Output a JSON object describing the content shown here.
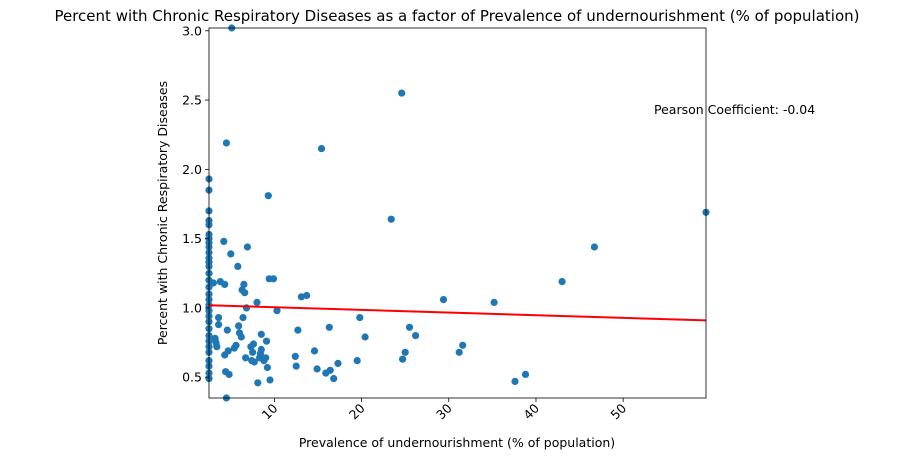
{
  "chart_data": {
    "type": "scatter",
    "title": "Percent with Chronic Respiratory Diseases as a factor of Prevalence of undernourishment (% of population)",
    "xlabel": "Prevalence of undernourishment (% of population)",
    "ylabel": "Percent with Chronic Respiratory Diseases",
    "xlim": [
      2.5,
      59.5
    ],
    "ylim": [
      0.35,
      3.02
    ],
    "xticks": [
      10,
      20,
      30,
      40,
      50
    ],
    "yticks": [
      0.5,
      1.0,
      1.5,
      2.0,
      2.5,
      3.0
    ],
    "xtick_labels": [
      "10",
      "20",
      "30",
      "40",
      "50"
    ],
    "ytick_labels": [
      "0.5",
      "1.0",
      "1.5",
      "2.0",
      "2.5",
      "3.0"
    ],
    "grid": false,
    "annotation": "Pearson Coefficient: -0.04",
    "marker_color": "#1f77b4",
    "trend_color": "#ff0000",
    "trend_line": {
      "x": [
        2.5,
        59.5
      ],
      "y": [
        1.02,
        0.91
      ]
    },
    "points": [
      {
        "x": 2.5,
        "y": 1.93
      },
      {
        "x": 2.5,
        "y": 1.85
      },
      {
        "x": 2.5,
        "y": 1.7
      },
      {
        "x": 2.5,
        "y": 1.63
      },
      {
        "x": 2.5,
        "y": 1.6
      },
      {
        "x": 2.5,
        "y": 1.53
      },
      {
        "x": 2.5,
        "y": 1.5
      },
      {
        "x": 2.5,
        "y": 1.47
      },
      {
        "x": 2.5,
        "y": 1.44
      },
      {
        "x": 2.5,
        "y": 1.4
      },
      {
        "x": 2.5,
        "y": 1.36
      },
      {
        "x": 2.5,
        "y": 1.33
      },
      {
        "x": 2.5,
        "y": 1.3
      },
      {
        "x": 2.5,
        "y": 1.25
      },
      {
        "x": 2.5,
        "y": 1.2
      },
      {
        "x": 2.5,
        "y": 1.15
      },
      {
        "x": 2.5,
        "y": 1.1
      },
      {
        "x": 2.5,
        "y": 1.06
      },
      {
        "x": 2.5,
        "y": 1.02
      },
      {
        "x": 2.5,
        "y": 0.98
      },
      {
        "x": 2.5,
        "y": 0.94
      },
      {
        "x": 2.5,
        "y": 0.9
      },
      {
        "x": 2.5,
        "y": 0.85
      },
      {
        "x": 2.5,
        "y": 0.8
      },
      {
        "x": 2.5,
        "y": 0.76
      },
      {
        "x": 2.5,
        "y": 0.72
      },
      {
        "x": 2.5,
        "y": 0.68
      },
      {
        "x": 2.5,
        "y": 0.62
      },
      {
        "x": 2.5,
        "y": 0.58
      },
      {
        "x": 2.5,
        "y": 0.53
      },
      {
        "x": 2.5,
        "y": 0.49
      },
      {
        "x": 3.0,
        "y": 1.18
      },
      {
        "x": 3.2,
        "y": 0.78
      },
      {
        "x": 3.3,
        "y": 0.75
      },
      {
        "x": 3.4,
        "y": 0.72
      },
      {
        "x": 3.6,
        "y": 0.93
      },
      {
        "x": 3.6,
        "y": 0.88
      },
      {
        "x": 3.8,
        "y": 1.19
      },
      {
        "x": 4.2,
        "y": 1.48
      },
      {
        "x": 4.3,
        "y": 1.17
      },
      {
        "x": 4.3,
        "y": 0.66
      },
      {
        "x": 4.4,
        "y": 0.54
      },
      {
        "x": 4.5,
        "y": 2.19
      },
      {
        "x": 4.5,
        "y": 0.35
      },
      {
        "x": 4.6,
        "y": 0.84
      },
      {
        "x": 4.7,
        "y": 0.69
      },
      {
        "x": 4.8,
        "y": 0.52
      },
      {
        "x": 5.0,
        "y": 1.39
      },
      {
        "x": 5.1,
        "y": 3.02
      },
      {
        "x": 5.4,
        "y": 0.71
      },
      {
        "x": 5.6,
        "y": 0.73
      },
      {
        "x": 5.8,
        "y": 1.3
      },
      {
        "x": 5.9,
        "y": 0.87
      },
      {
        "x": 6.0,
        "y": 0.82
      },
      {
        "x": 6.2,
        "y": 0.79
      },
      {
        "x": 6.3,
        "y": 1.13
      },
      {
        "x": 6.4,
        "y": 0.93
      },
      {
        "x": 6.5,
        "y": 1.17
      },
      {
        "x": 6.6,
        "y": 1.11
      },
      {
        "x": 6.7,
        "y": 0.64
      },
      {
        "x": 6.8,
        "y": 1.0
      },
      {
        "x": 6.9,
        "y": 1.44
      },
      {
        "x": 7.3,
        "y": 0.72
      },
      {
        "x": 7.4,
        "y": 0.62
      },
      {
        "x": 7.5,
        "y": 0.68
      },
      {
        "x": 7.6,
        "y": 0.74
      },
      {
        "x": 7.7,
        "y": 0.61
      },
      {
        "x": 8.0,
        "y": 1.04
      },
      {
        "x": 8.1,
        "y": 0.46
      },
      {
        "x": 8.3,
        "y": 0.64
      },
      {
        "x": 8.4,
        "y": 0.67
      },
      {
        "x": 8.5,
        "y": 0.7
      },
      {
        "x": 8.5,
        "y": 0.81
      },
      {
        "x": 8.8,
        "y": 0.62
      },
      {
        "x": 9.0,
        "y": 0.64
      },
      {
        "x": 9.1,
        "y": 0.76
      },
      {
        "x": 9.2,
        "y": 0.57
      },
      {
        "x": 9.3,
        "y": 1.81
      },
      {
        "x": 9.4,
        "y": 1.21
      },
      {
        "x": 9.5,
        "y": 0.48
      },
      {
        "x": 9.9,
        "y": 1.21
      },
      {
        "x": 10.3,
        "y": 0.98
      },
      {
        "x": 12.4,
        "y": 0.65
      },
      {
        "x": 12.5,
        "y": 0.58
      },
      {
        "x": 12.7,
        "y": 0.84
      },
      {
        "x": 13.1,
        "y": 1.08
      },
      {
        "x": 13.7,
        "y": 1.09
      },
      {
        "x": 14.6,
        "y": 0.69
      },
      {
        "x": 14.9,
        "y": 0.56
      },
      {
        "x": 15.4,
        "y": 2.15
      },
      {
        "x": 15.9,
        "y": 0.53
      },
      {
        "x": 16.3,
        "y": 0.86
      },
      {
        "x": 16.4,
        "y": 0.55
      },
      {
        "x": 16.8,
        "y": 0.49
      },
      {
        "x": 17.3,
        "y": 0.6
      },
      {
        "x": 19.5,
        "y": 0.62
      },
      {
        "x": 19.8,
        "y": 0.93
      },
      {
        "x": 20.4,
        "y": 0.79
      },
      {
        "x": 23.4,
        "y": 1.64
      },
      {
        "x": 24.6,
        "y": 2.55
      },
      {
        "x": 24.7,
        "y": 0.63
      },
      {
        "x": 25.0,
        "y": 0.68
      },
      {
        "x": 25.5,
        "y": 0.86
      },
      {
        "x": 26.2,
        "y": 0.8
      },
      {
        "x": 29.4,
        "y": 1.06
      },
      {
        "x": 31.2,
        "y": 0.68
      },
      {
        "x": 31.6,
        "y": 0.73
      },
      {
        "x": 35.2,
        "y": 1.04
      },
      {
        "x": 37.6,
        "y": 0.47
      },
      {
        "x": 38.8,
        "y": 0.52
      },
      {
        "x": 43.0,
        "y": 1.19
      },
      {
        "x": 46.7,
        "y": 1.44
      },
      {
        "x": 59.5,
        "y": 1.69
      }
    ]
  }
}
